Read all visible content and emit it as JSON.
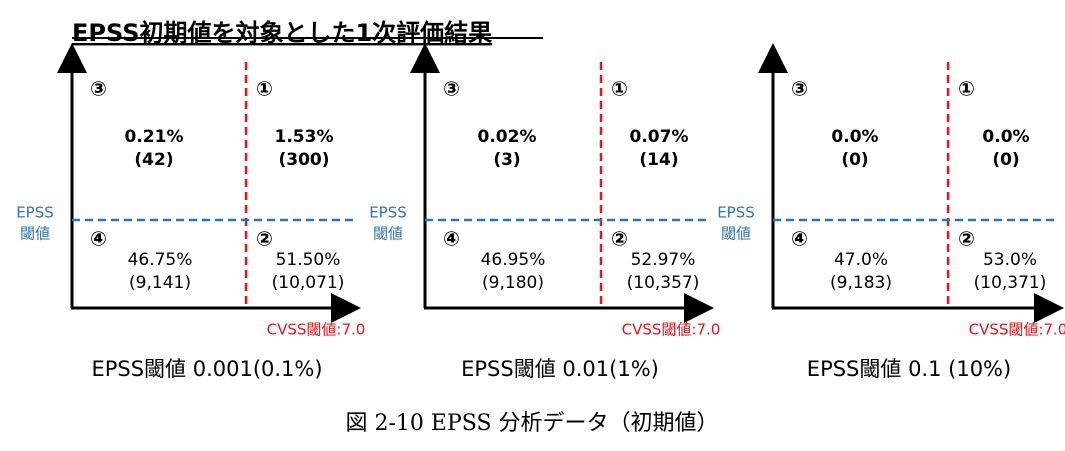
{
  "title": "EPSS初期値を対象とした1次評価結果",
  "panels": [
    {
      "y_label": [
        "EPSS",
        "閾値"
      ],
      "x_label": "CVSS閾値:7.0",
      "caption": "EPSS閾値 0.001(0.1%)",
      "quadrants": [
        {
          "number": "③",
          "percent": "0.21%",
          "count": "(42)"
        },
        {
          "number": "①",
          "percent": "1.53%",
          "count": "(300)"
        },
        {
          "number": "④",
          "percent": "46.75%",
          "count": "(9,141)"
        },
        {
          "number": "②",
          "percent": "51.50%",
          "count": "(10,071)"
        }
      ]
    },
    {
      "y_label": [
        "EPSS",
        "閾値"
      ],
      "x_label": "CVSS閾値:7.0",
      "caption": "EPSS閾値 0.01(1%)",
      "quadrants": [
        {
          "number": "③",
          "percent": "0.02%",
          "count": "(3)"
        },
        {
          "number": "①",
          "percent": "0.07%",
          "count": "(14)"
        },
        {
          "number": "④",
          "percent": "46.95%",
          "count": "(9,180)"
        },
        {
          "number": "②",
          "percent": "52.97%",
          "count": "(10,357)"
        }
      ]
    },
    {
      "y_label": [
        "EPSS",
        "閾値"
      ],
      "x_label": "CVSS閾値:7.0",
      "caption": "EPSS閾値 0.1 (10%)",
      "quadrants": [
        {
          "number": "③",
          "percent": "0.0%",
          "count": "(0)"
        },
        {
          "number": "①",
          "percent": "0.0%",
          "count": "(0)"
        },
        {
          "number": "④",
          "percent": "47.0%",
          "count": "(9,183)"
        },
        {
          "number": "②",
          "percent": "53.0%",
          "count": "(10,371)"
        }
      ]
    }
  ],
  "figure_caption": "図 2-10 EPSS 分析データ（初期値）"
}
